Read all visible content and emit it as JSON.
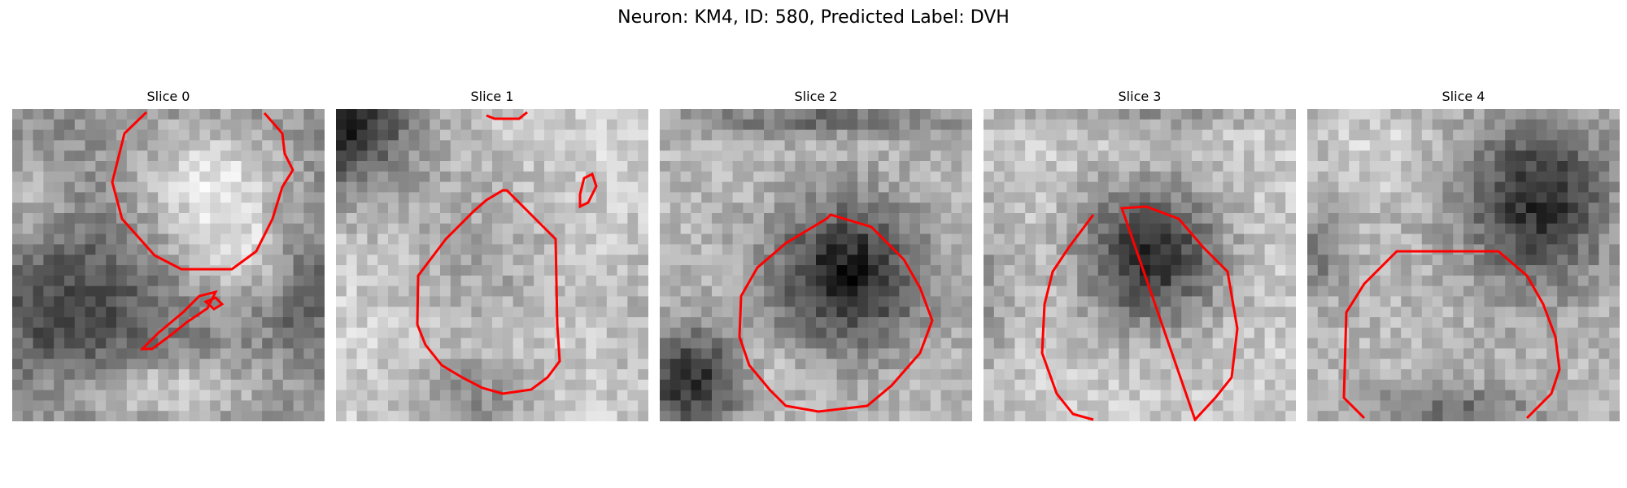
{
  "figure": {
    "title": "Neuron: KM4, ID: 580, Predicted Label: DVH",
    "contour_color": "#ff0000"
  },
  "slices": [
    {
      "title": "Slice 0"
    },
    {
      "title": "Slice 1"
    },
    {
      "title": "Slice 2"
    },
    {
      "title": "Slice 3"
    },
    {
      "title": "Slice 4"
    }
  ]
}
